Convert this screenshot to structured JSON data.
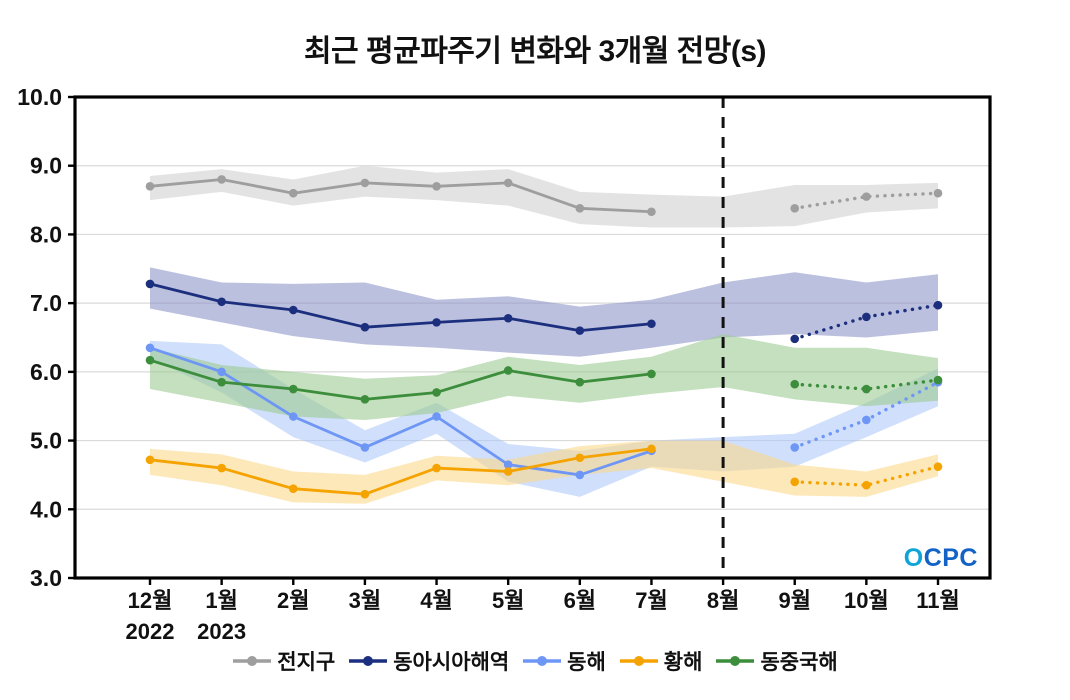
{
  "chart_data": {
    "type": "line",
    "title": "최근 평균파주기 변화와 3개월 전망(s)",
    "x_tick_labels": [
      "12월",
      "1월",
      "2월",
      "3월",
      "4월",
      "5월",
      "6월",
      "7월",
      "8월",
      "9월",
      "10월",
      "11월"
    ],
    "x_year_labels": [
      {
        "index": 0,
        "label": "2022"
      },
      {
        "index": 1,
        "label": "2023"
      }
    ],
    "ylim": [
      3.0,
      10.0
    ],
    "y_ticks": [
      3.0,
      4.0,
      5.0,
      6.0,
      7.0,
      8.0,
      9.0,
      10.0
    ],
    "grid": true,
    "legend_position": "bottom",
    "forecast_divider_index": 8,
    "forecast_start_index": 9,
    "watermark": "OCPC",
    "watermark_colors": {
      "first": "#0ea5d6",
      "rest": "#1362c6"
    },
    "series": [
      {
        "name": "전지구",
        "color": "#9e9e9e",
        "band_color": "#dcdcdc",
        "band_opacity": 0.8,
        "values": [
          8.7,
          8.8,
          8.6,
          8.75,
          8.7,
          8.75,
          8.38,
          8.33,
          null,
          8.38,
          8.55,
          8.6
        ],
        "band_upper": [
          8.85,
          8.95,
          8.8,
          9.0,
          8.9,
          8.95,
          8.62,
          8.58,
          8.55,
          8.72,
          8.72,
          8.75
        ],
        "band_lower": [
          8.5,
          8.62,
          8.42,
          8.55,
          8.5,
          8.42,
          8.15,
          8.1,
          8.1,
          8.12,
          8.32,
          8.38
        ]
      },
      {
        "name": "동아시아해역",
        "color": "#1c2f7e",
        "band_color": "#8e96c8",
        "band_opacity": 0.6,
        "values": [
          7.28,
          7.02,
          6.9,
          6.65,
          6.72,
          6.78,
          6.6,
          6.7,
          null,
          6.48,
          6.8,
          6.97
        ],
        "band_upper": [
          7.52,
          7.3,
          7.28,
          7.3,
          7.05,
          7.1,
          6.95,
          7.05,
          7.3,
          7.45,
          7.3,
          7.42
        ],
        "band_lower": [
          6.92,
          6.72,
          6.52,
          6.4,
          6.35,
          6.28,
          6.22,
          6.35,
          6.5,
          6.55,
          6.5,
          6.6
        ]
      },
      {
        "name": "동해",
        "color": "#6e96f5",
        "band_color": "#aac4f7",
        "band_opacity": 0.55,
        "values": [
          6.35,
          6.0,
          5.35,
          4.9,
          5.35,
          4.65,
          4.5,
          4.85,
          null,
          4.9,
          5.3,
          5.85
        ],
        "band_upper": [
          6.45,
          6.4,
          5.75,
          5.15,
          5.55,
          4.95,
          4.85,
          5.0,
          5.05,
          5.1,
          5.55,
          6.05
        ],
        "band_lower": [
          6.2,
          5.7,
          5.05,
          4.68,
          5.1,
          4.4,
          4.18,
          4.62,
          4.55,
          4.62,
          5.05,
          5.5
        ]
      },
      {
        "name": "황해",
        "color": "#f5a300",
        "band_color": "#fcd98c",
        "band_opacity": 0.6,
        "values": [
          4.72,
          4.6,
          4.3,
          4.22,
          4.6,
          4.55,
          4.75,
          4.88,
          null,
          4.4,
          4.35,
          4.62
        ],
        "band_upper": [
          4.88,
          4.8,
          4.55,
          4.5,
          4.78,
          4.72,
          4.92,
          5.0,
          5.0,
          4.65,
          4.55,
          4.8
        ],
        "band_lower": [
          4.5,
          4.35,
          4.1,
          4.08,
          4.42,
          4.35,
          4.5,
          4.6,
          4.4,
          4.2,
          4.18,
          4.48
        ]
      },
      {
        "name": "동중국해",
        "color": "#3c8d3c",
        "band_color": "#9ccb93",
        "band_opacity": 0.6,
        "values": [
          6.17,
          5.85,
          5.75,
          5.6,
          5.7,
          6.02,
          5.85,
          5.97,
          null,
          5.82,
          5.75,
          5.88
        ],
        "band_upper": [
          6.35,
          6.1,
          6.0,
          5.9,
          5.95,
          6.22,
          6.1,
          6.22,
          6.55,
          6.35,
          6.35,
          6.2
        ],
        "band_lower": [
          5.75,
          5.55,
          5.35,
          5.3,
          5.4,
          5.65,
          5.55,
          5.68,
          5.78,
          5.6,
          5.5,
          5.58
        ]
      }
    ]
  }
}
